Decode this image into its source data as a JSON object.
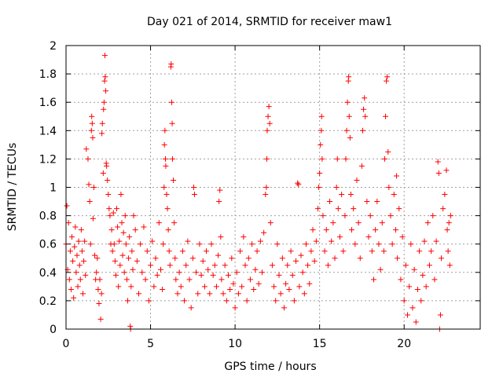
{
  "chart_data": {
    "type": "scatter",
    "title": "Day 021 of 2014, SRMTID for receiver maw1",
    "xlabel": "GPS time / hours",
    "ylabel": "SRMTID / TECUs",
    "xlim": [
      0,
      24.5
    ],
    "ylim": [
      0,
      2
    ],
    "x_ticks": [
      0,
      5,
      10,
      15,
      20
    ],
    "x_tick_labels": [
      "0",
      "5",
      "10",
      "15",
      "20"
    ],
    "y_ticks": [
      0,
      0.2,
      0.4,
      0.6,
      0.8,
      1,
      1.2,
      1.4,
      1.6,
      1.8,
      2
    ],
    "y_tick_labels": [
      "0",
      "0.2",
      "0.4",
      "0.6",
      "0.8",
      "1",
      "1.2",
      "1.4",
      "1.6",
      "1.8",
      "2"
    ],
    "grid": true,
    "marker": "+",
    "series": [
      {
        "name": "SRMTID",
        "color": "#ff0000",
        "points": [
          [
            0.0,
            0.6
          ],
          [
            0.05,
            0.87
          ],
          [
            0.1,
            0.42
          ],
          [
            0.15,
            0.75
          ],
          [
            0.2,
            0.35
          ],
          [
            0.25,
            0.55
          ],
          [
            0.3,
            0.28
          ],
          [
            0.35,
            0.65
          ],
          [
            0.4,
            0.48
          ],
          [
            0.45,
            0.22
          ],
          [
            0.5,
            0.58
          ],
          [
            0.55,
            0.72
          ],
          [
            0.6,
            0.4
          ],
          [
            0.65,
            0.52
          ],
          [
            0.7,
            0.3
          ],
          [
            0.75,
            0.62
          ],
          [
            0.8,
            0.45
          ],
          [
            0.85,
            0.35
          ],
          [
            0.9,
            0.7
          ],
          [
            0.95,
            0.55
          ],
          [
            1.0,
            0.25
          ],
          [
            1.05,
            0.48
          ],
          [
            1.1,
            0.62
          ],
          [
            1.15,
            0.38
          ],
          [
            1.2,
            1.27
          ],
          [
            1.3,
            1.2
          ],
          [
            1.35,
            1.02
          ],
          [
            1.4,
            0.9
          ],
          [
            1.45,
            0.6
          ],
          [
            1.5,
            1.4
          ],
          [
            1.52,
            1.5
          ],
          [
            1.55,
            1.45
          ],
          [
            1.58,
            1.35
          ],
          [
            1.6,
            0.78
          ],
          [
            1.65,
            1.0
          ],
          [
            1.7,
            0.52
          ],
          [
            1.75,
            0.35
          ],
          [
            1.8,
            0.4
          ],
          [
            1.85,
            0.5
          ],
          [
            1.9,
            0.28
          ],
          [
            1.95,
            0.18
          ],
          [
            2.0,
            0.35
          ],
          [
            2.05,
            0.07
          ],
          [
            2.1,
            0.25
          ],
          [
            2.12,
            1.38
          ],
          [
            2.15,
            1.45
          ],
          [
            2.2,
            1.1
          ],
          [
            2.22,
            1.55
          ],
          [
            2.25,
            1.6
          ],
          [
            2.28,
            1.75
          ],
          [
            2.3,
            1.93
          ],
          [
            2.32,
            1.78
          ],
          [
            2.35,
            1.68
          ],
          [
            2.38,
            1.17
          ],
          [
            2.4,
            1.15
          ],
          [
            2.45,
            1.05
          ],
          [
            2.5,
            0.95
          ],
          [
            2.55,
            0.85
          ],
          [
            2.6,
            0.8
          ],
          [
            2.65,
            0.6
          ],
          [
            2.7,
            0.7
          ],
          [
            2.75,
            0.55
          ],
          [
            2.8,
            0.82
          ],
          [
            2.85,
            0.6
          ],
          [
            2.9,
            0.48
          ],
          [
            2.95,
            0.38
          ],
          [
            3.0,
            0.85
          ],
          [
            3.05,
            0.72
          ],
          [
            3.1,
            0.3
          ],
          [
            3.15,
            0.62
          ],
          [
            3.2,
            0.45
          ],
          [
            3.25,
            0.95
          ],
          [
            3.3,
            0.75
          ],
          [
            3.35,
            0.52
          ],
          [
            3.4,
            0.68
          ],
          [
            3.45,
            0.4
          ],
          [
            3.5,
            0.8
          ],
          [
            3.55,
            0.6
          ],
          [
            3.6,
            0.35
          ],
          [
            3.65,
            0.2
          ],
          [
            3.7,
            0.5
          ],
          [
            3.75,
            0.65
          ],
          [
            3.8,
            0.02
          ],
          [
            3.82,
            0.0
          ],
          [
            3.85,
            0.3
          ],
          [
            3.9,
            0.55
          ],
          [
            3.95,
            0.42
          ],
          [
            4.0,
            0.8
          ],
          [
            4.1,
            0.7
          ],
          [
            4.2,
            0.48
          ],
          [
            4.3,
            0.25
          ],
          [
            4.4,
            0.6
          ],
          [
            4.5,
            0.4
          ],
          [
            4.6,
            0.72
          ],
          [
            4.7,
            0.35
          ],
          [
            4.8,
            0.55
          ],
          [
            4.9,
            0.2
          ],
          [
            5.0,
            0.45
          ],
          [
            5.1,
            0.62
          ],
          [
            5.2,
            0.3
          ],
          [
            5.3,
            0.5
          ],
          [
            5.4,
            0.38
          ],
          [
            5.5,
            0.75
          ],
          [
            5.6,
            0.42
          ],
          [
            5.7,
            0.28
          ],
          [
            5.75,
            0.6
          ],
          [
            5.8,
            1.0
          ],
          [
            5.82,
            1.3
          ],
          [
            5.85,
            1.4
          ],
          [
            5.88,
            1.2
          ],
          [
            5.9,
            1.15
          ],
          [
            5.95,
            0.95
          ],
          [
            6.0,
            0.85
          ],
          [
            6.05,
            0.7
          ],
          [
            6.1,
            0.55
          ],
          [
            6.15,
            0.45
          ],
          [
            6.2,
            1.85
          ],
          [
            6.22,
            1.87
          ],
          [
            6.25,
            1.6
          ],
          [
            6.28,
            1.45
          ],
          [
            6.3,
            1.2
          ],
          [
            6.35,
            1.05
          ],
          [
            6.4,
            0.75
          ],
          [
            6.45,
            0.5
          ],
          [
            6.5,
            0.35
          ],
          [
            6.6,
            0.25
          ],
          [
            6.7,
            0.4
          ],
          [
            6.8,
            0.3
          ],
          [
            6.9,
            0.55
          ],
          [
            7.0,
            0.2
          ],
          [
            7.1,
            0.45
          ],
          [
            7.2,
            0.62
          ],
          [
            7.3,
            0.35
          ],
          [
            7.4,
            0.15
          ],
          [
            7.5,
            0.5
          ],
          [
            7.55,
            1.0
          ],
          [
            7.6,
            0.95
          ],
          [
            7.7,
            0.4
          ],
          [
            7.8,
            0.25
          ],
          [
            7.9,
            0.6
          ],
          [
            8.0,
            0.38
          ],
          [
            8.1,
            0.48
          ],
          [
            8.2,
            0.3
          ],
          [
            8.3,
            0.55
          ],
          [
            8.4,
            0.42
          ],
          [
            8.5,
            0.25
          ],
          [
            8.6,
            0.6
          ],
          [
            8.7,
            0.38
          ],
          [
            8.8,
            0.45
          ],
          [
            8.9,
            0.3
          ],
          [
            9.0,
            0.52
          ],
          [
            9.05,
            0.9
          ],
          [
            9.1,
            0.98
          ],
          [
            9.15,
            0.65
          ],
          [
            9.2,
            0.35
          ],
          [
            9.3,
            0.25
          ],
          [
            9.4,
            0.45
          ],
          [
            9.5,
            0.2
          ],
          [
            9.6,
            0.38
          ],
          [
            9.7,
            0.28
          ],
          [
            9.8,
            0.5
          ],
          [
            9.9,
            0.32
          ],
          [
            10.0,
            0.15
          ],
          [
            10.1,
            0.4
          ],
          [
            10.2,
            0.25
          ],
          [
            10.3,
            0.55
          ],
          [
            10.4,
            0.3
          ],
          [
            10.5,
            0.65
          ],
          [
            10.6,
            0.45
          ],
          [
            10.7,
            0.2
          ],
          [
            10.8,
            0.5
          ],
          [
            10.9,
            0.35
          ],
          [
            11.0,
            0.6
          ],
          [
            11.1,
            0.28
          ],
          [
            11.2,
            0.42
          ],
          [
            11.3,
            0.55
          ],
          [
            11.4,
            0.32
          ],
          [
            11.5,
            0.62
          ],
          [
            11.6,
            0.4
          ],
          [
            11.7,
            0.68
          ],
          [
            11.8,
            0.95
          ],
          [
            11.85,
            1.0
          ],
          [
            11.88,
            1.2
          ],
          [
            11.9,
            1.4
          ],
          [
            11.95,
            1.5
          ],
          [
            12.0,
            1.57
          ],
          [
            12.05,
            1.45
          ],
          [
            12.1,
            0.75
          ],
          [
            12.2,
            0.45
          ],
          [
            12.3,
            0.3
          ],
          [
            12.4,
            0.2
          ],
          [
            12.5,
            0.6
          ],
          [
            12.6,
            0.38
          ],
          [
            12.7,
            0.25
          ],
          [
            12.8,
            0.5
          ],
          [
            12.9,
            0.15
          ],
          [
            13.0,
            0.32
          ],
          [
            13.1,
            0.45
          ],
          [
            13.2,
            0.28
          ],
          [
            13.3,
            0.55
          ],
          [
            13.4,
            0.38
          ],
          [
            13.5,
            0.2
          ],
          [
            13.6,
            0.48
          ],
          [
            13.7,
            1.03
          ],
          [
            13.75,
            1.02
          ],
          [
            13.8,
            0.3
          ],
          [
            13.9,
            0.52
          ],
          [
            14.0,
            0.4
          ],
          [
            14.1,
            0.25
          ],
          [
            14.2,
            0.6
          ],
          [
            14.3,
            0.45
          ],
          [
            14.4,
            0.32
          ],
          [
            14.5,
            0.55
          ],
          [
            14.6,
            0.7
          ],
          [
            14.7,
            0.48
          ],
          [
            14.8,
            0.62
          ],
          [
            14.9,
            0.85
          ],
          [
            14.95,
            1.0
          ],
          [
            15.0,
            1.1
          ],
          [
            15.05,
            1.3
          ],
          [
            15.1,
            1.4
          ],
          [
            15.12,
            1.5
          ],
          [
            15.15,
            1.2
          ],
          [
            15.2,
            0.8
          ],
          [
            15.3,
            0.55
          ],
          [
            15.4,
            0.7
          ],
          [
            15.5,
            0.45
          ],
          [
            15.6,
            0.9
          ],
          [
            15.7,
            0.62
          ],
          [
            15.8,
            0.75
          ],
          [
            15.9,
            0.5
          ],
          [
            16.0,
            1.0
          ],
          [
            16.05,
            1.2
          ],
          [
            16.1,
            0.85
          ],
          [
            16.2,
            0.65
          ],
          [
            16.3,
            0.95
          ],
          [
            16.4,
            0.55
          ],
          [
            16.5,
            0.8
          ],
          [
            16.55,
            1.2
          ],
          [
            16.6,
            1.4
          ],
          [
            16.65,
            1.6
          ],
          [
            16.7,
            1.75
          ],
          [
            16.72,
            1.78
          ],
          [
            16.75,
            1.5
          ],
          [
            16.8,
            1.35
          ],
          [
            16.85,
            0.95
          ],
          [
            16.9,
            0.7
          ],
          [
            17.0,
            0.85
          ],
          [
            17.1,
            0.6
          ],
          [
            17.2,
            1.05
          ],
          [
            17.3,
            0.75
          ],
          [
            17.4,
            0.5
          ],
          [
            17.5,
            1.15
          ],
          [
            17.55,
            1.4
          ],
          [
            17.6,
            1.55
          ],
          [
            17.65,
            1.63
          ],
          [
            17.7,
            1.5
          ],
          [
            17.8,
            0.9
          ],
          [
            17.9,
            0.65
          ],
          [
            18.0,
            0.8
          ],
          [
            18.1,
            0.55
          ],
          [
            18.2,
            0.35
          ],
          [
            18.3,
            0.7
          ],
          [
            18.4,
            0.9
          ],
          [
            18.5,
            0.6
          ],
          [
            18.6,
            0.42
          ],
          [
            18.7,
            0.75
          ],
          [
            18.8,
            0.55
          ],
          [
            18.85,
            1.2
          ],
          [
            18.9,
            1.5
          ],
          [
            18.95,
            1.75
          ],
          [
            19.0,
            1.78
          ],
          [
            19.05,
            1.25
          ],
          [
            19.1,
            1.0
          ],
          [
            19.2,
            0.8
          ],
          [
            19.3,
            0.6
          ],
          [
            19.4,
            0.95
          ],
          [
            19.5,
            0.7
          ],
          [
            19.55,
            1.08
          ],
          [
            19.6,
            0.5
          ],
          [
            19.7,
            0.85
          ],
          [
            19.8,
            0.35
          ],
          [
            19.9,
            0.65
          ],
          [
            20.0,
            0.2
          ],
          [
            20.1,
            0.45
          ],
          [
            20.2,
            0.1
          ],
          [
            20.3,
            0.3
          ],
          [
            20.4,
            0.6
          ],
          [
            20.5,
            0.15
          ],
          [
            20.6,
            0.42
          ],
          [
            20.7,
            0.05
          ],
          [
            20.8,
            0.28
          ],
          [
            20.9,
            0.55
          ],
          [
            21.0,
            0.2
          ],
          [
            21.1,
            0.38
          ],
          [
            21.2,
            0.62
          ],
          [
            21.3,
            0.3
          ],
          [
            21.4,
            0.75
          ],
          [
            21.5,
            0.45
          ],
          [
            21.6,
            0.55
          ],
          [
            21.7,
            0.8
          ],
          [
            21.8,
            0.35
          ],
          [
            21.9,
            0.62
          ],
          [
            22.0,
            1.18
          ],
          [
            22.05,
            1.1
          ],
          [
            22.1,
            0.0
          ],
          [
            22.15,
            0.1
          ],
          [
            22.2,
            0.5
          ],
          [
            22.3,
            0.85
          ],
          [
            22.4,
            0.95
          ],
          [
            22.5,
            1.12
          ],
          [
            22.55,
            0.7
          ],
          [
            22.6,
            0.55
          ],
          [
            22.65,
            0.75
          ],
          [
            22.7,
            0.45
          ],
          [
            22.75,
            0.8
          ]
        ]
      }
    ]
  }
}
